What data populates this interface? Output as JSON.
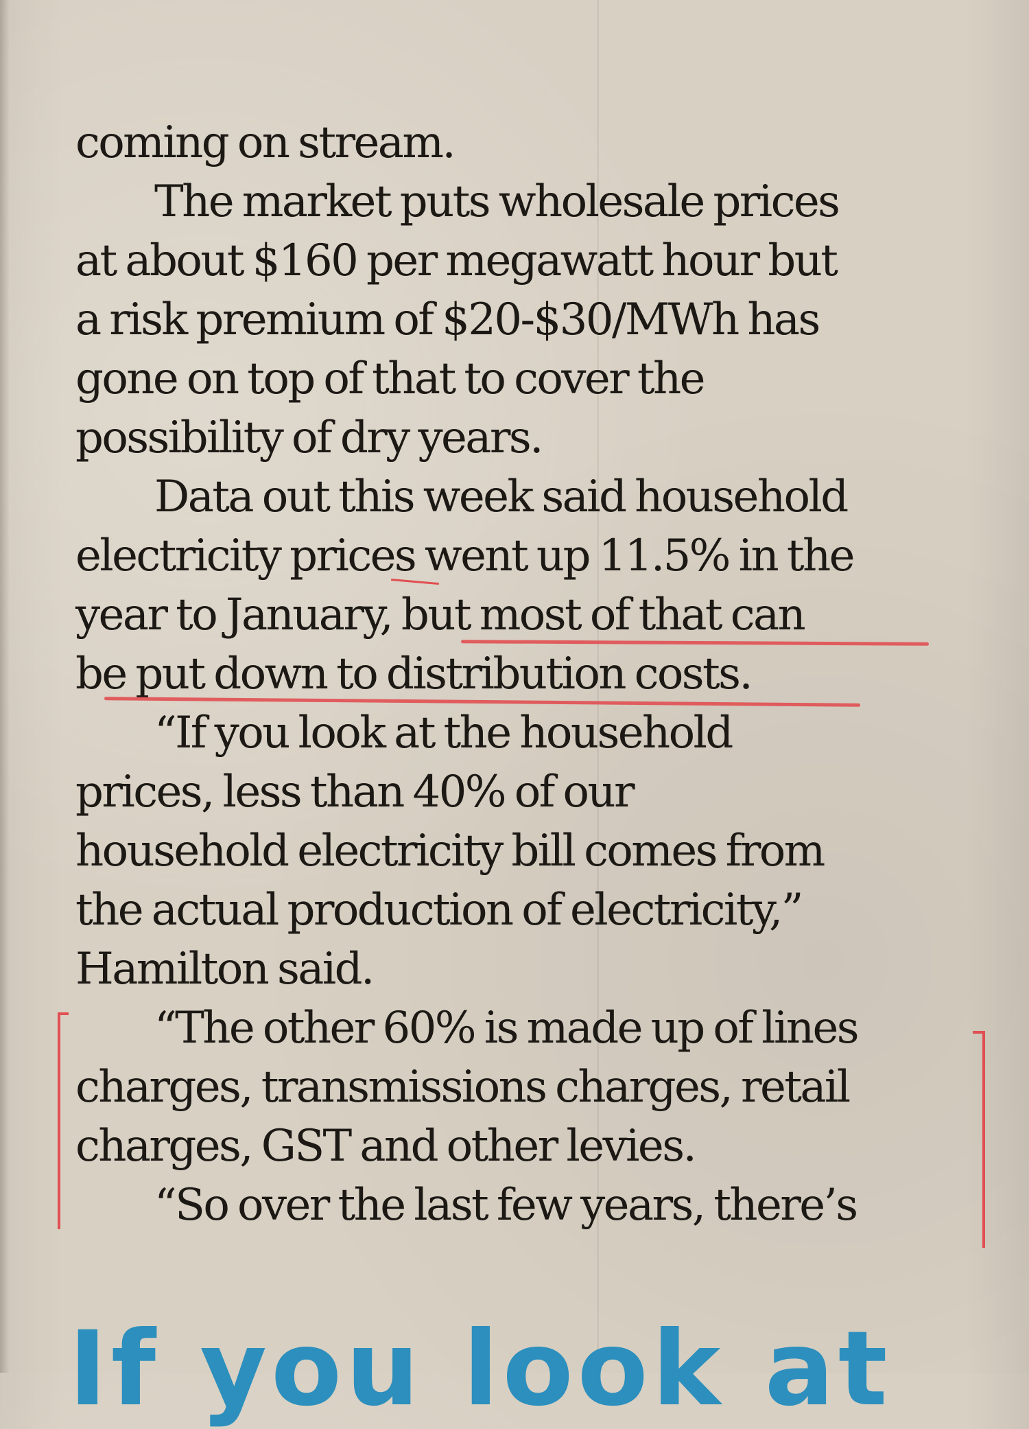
{
  "article": {
    "lines": [
      "coming on stream.",
      "The market puts wholesale prices",
      "at about $160 per megawatt hour but",
      "a risk premium of $20-$30/MWh has",
      "gone on top of that to cover the",
      "possibility of dry years.",
      "Data out this week said household",
      "electricity prices went up 11.5% in the",
      "year to January, but most of that can",
      "be put down to distribution costs.",
      "“If you look at the household",
      "prices, less than 40% of our",
      "household electricity bill comes from",
      "the actual production of electricity,”",
      "Hamilton said.",
      "“The other 60% is made up of lines",
      "charges, transmissions charges, retail",
      "charges, GST and other levies.",
      "“So over the last few years, there’s"
    ]
  },
  "headline_fragment": "If you look at",
  "colors": {
    "paper": "#d8d0c3",
    "ink": "#1c1915",
    "marker": "#e14f52",
    "headline": "#2c8fbd"
  }
}
